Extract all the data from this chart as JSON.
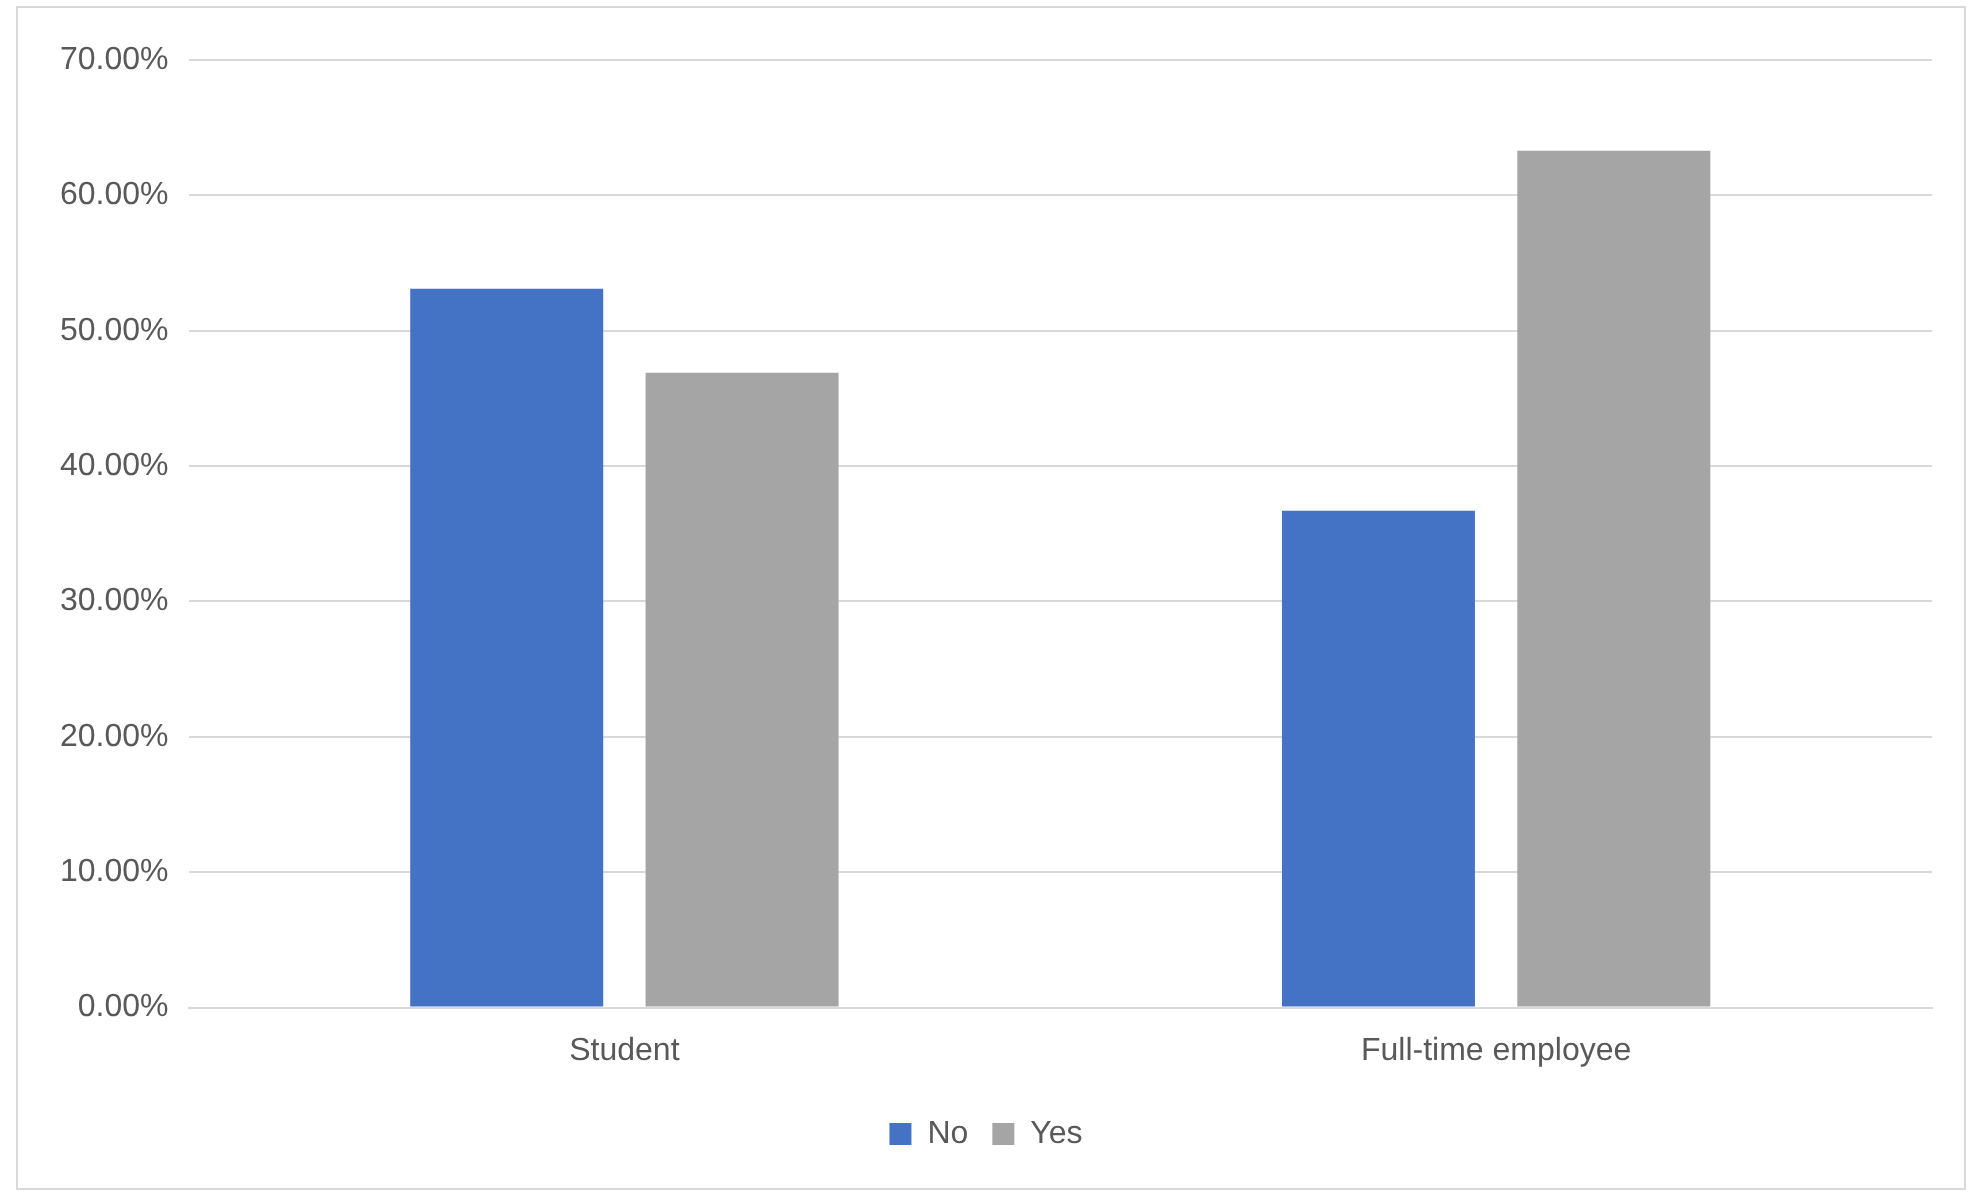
{
  "chart_data": {
    "type": "bar",
    "categories": [
      "Student",
      "Full-time employee"
    ],
    "series": [
      {
        "name": "No",
        "color": "#4472c4",
        "values": [
          53.1,
          36.7
        ]
      },
      {
        "name": "Yes",
        "color": "#a5a5a5",
        "values": [
          46.9,
          63.3
        ]
      }
    ],
    "ylim": [
      0,
      70
    ],
    "yticks": [
      {
        "value": 0,
        "label": "0.00%"
      },
      {
        "value": 10,
        "label": "10.00%"
      },
      {
        "value": 20,
        "label": "20.00%"
      },
      {
        "value": 30,
        "label": "30.00%"
      },
      {
        "value": 40,
        "label": "40.00%"
      },
      {
        "value": 50,
        "label": "50.00%"
      },
      {
        "value": 60,
        "label": "60.00%"
      },
      {
        "value": 70,
        "label": "70.00%"
      }
    ],
    "grid": "y",
    "legend": "bottom"
  }
}
